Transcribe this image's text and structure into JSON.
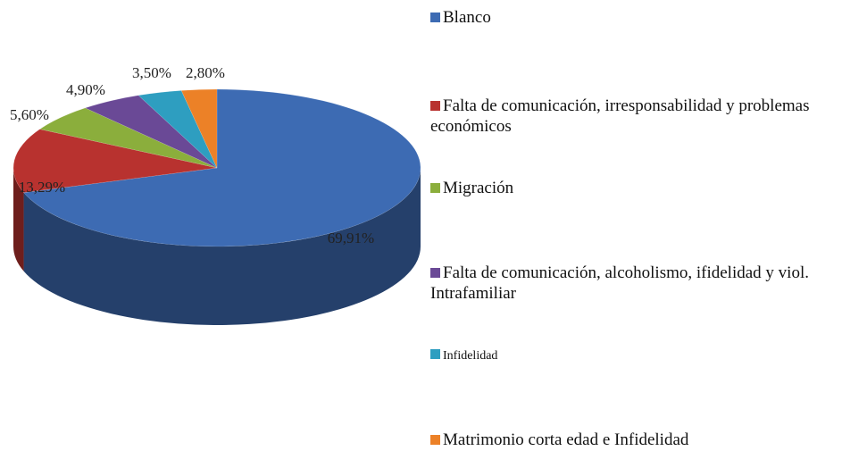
{
  "chart_data": {
    "type": "pie",
    "categories": [
      "Blanco",
      "Falta de comunicación, irresponsabilidad y problemas económicos",
      "Migración",
      "Falta de comunicación, alcoholismo, ifidelidad y viol. Intrafamiliar",
      "Infidelidad",
      "Matrimonio corta edad e Infidelidad"
    ],
    "values": [
      69.91,
      13.29,
      5.6,
      4.9,
      3.5,
      2.8
    ],
    "value_labels": [
      "69,91%",
      "13,29%",
      "5,60%",
      "4,90%",
      "3,50%",
      "2,80%"
    ],
    "colors": [
      "#3d6bb3",
      "#b8322f",
      "#8bae3c",
      "#6a4996",
      "#2e9ec0",
      "#ec8127"
    ],
    "legend": "right"
  }
}
